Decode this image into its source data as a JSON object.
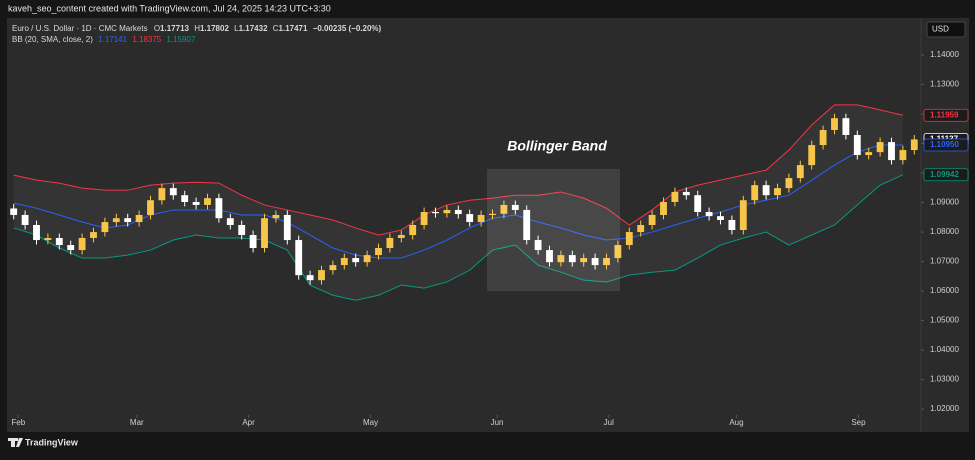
{
  "header": {
    "credit": "kaveh_seo_content created with TradingView.com, Jul 24, 2025 14:23 UTC+3:30",
    "currency": "USD",
    "footer": "TradingView"
  },
  "chart_data": {
    "type": "candlestick",
    "symbol": "Euro / U.S. Dollar · 1D · CMC Markets",
    "ohlc_legend": [
      {
        "key": "O",
        "value": 1.17713
      },
      {
        "key": "H",
        "value": 1.17802
      },
      {
        "key": "L",
        "value": 1.17432
      },
      {
        "key": "C",
        "value": 1.17471
      }
    ],
    "change": "−0.00235 (−0.20%)",
    "indicator": {
      "name": "BB (20, SMA, close, 2)",
      "values": [
        {
          "value": 1.17141,
          "color": "#2962ff"
        },
        {
          "value": 1.18375,
          "color": "#f23645"
        },
        {
          "value": 1.15907,
          "color": "#089981"
        }
      ]
    },
    "annotation": "Bollinger Band",
    "x": [
      0,
      1,
      2,
      3,
      4,
      5,
      6,
      7,
      8,
      9,
      10,
      11,
      12,
      13,
      14,
      15,
      16,
      17,
      18,
      19,
      20,
      21,
      22,
      23,
      24,
      25,
      26,
      27,
      28,
      29,
      30,
      31,
      32,
      33,
      34,
      35,
      36,
      37,
      38,
      39,
      40,
      41,
      42,
      43,
      44,
      45,
      46,
      47,
      48,
      49,
      50,
      51,
      52,
      53,
      54,
      55,
      56,
      57,
      58,
      59,
      60,
      61,
      62,
      63,
      64,
      65,
      66,
      67,
      68,
      69,
      70,
      71,
      72,
      73,
      74,
      75,
      76,
      77,
      78,
      79
    ],
    "open": [
      1.088,
      1.0858,
      1.0824,
      1.0773,
      1.078,
      1.0756,
      1.0739,
      1.078,
      1.08,
      1.0834,
      1.0847,
      1.0834,
      1.0858,
      1.0908,
      1.0949,
      1.0925,
      1.0902,
      1.0892,
      1.0915,
      1.0847,
      1.0824,
      1.079,
      1.0746,
      1.0847,
      1.0858,
      1.0773,
      1.0654,
      1.0637,
      1.0671,
      1.0688,
      1.0712,
      1.0698,
      1.0722,
      1.0746,
      1.078,
      1.079,
      1.0824,
      1.0868,
      1.0864,
      1.0875,
      1.0861,
      1.0834,
      1.0858,
      1.0862,
      1.0892,
      1.0875,
      1.0773,
      1.0739,
      1.0698,
      1.0722,
      1.0698,
      1.0712,
      1.0688,
      1.0712,
      1.0756,
      1.08,
      1.0824,
      1.0858,
      1.0902,
      1.0936,
      1.0925,
      1.0868,
      1.0854,
      1.0841,
      1.0807,
      1.0908,
      1.0959,
      1.0925,
      1.0949,
      1.0983,
      1.1027,
      1.1095,
      1.1146,
      1.1186,
      1.1129,
      1.1061,
      1.1071,
      1.1105,
      1.1044,
      1.1078
    ],
    "high": [
      1.0895,
      1.0873,
      1.0839,
      1.0795,
      1.0795,
      1.0771,
      1.0795,
      1.0815,
      1.0849,
      1.0862,
      1.0862,
      1.0873,
      1.0923,
      1.0964,
      1.0964,
      1.094,
      1.0917,
      1.093,
      1.093,
      1.0862,
      1.0839,
      1.0805,
      1.0862,
      1.0873,
      1.0873,
      1.0788,
      1.0669,
      1.0686,
      1.0703,
      1.0727,
      1.0727,
      1.0737,
      1.0761,
      1.0795,
      1.0805,
      1.0839,
      1.0883,
      1.0883,
      1.089,
      1.089,
      1.0876,
      1.0873,
      1.0877,
      1.0907,
      1.0907,
      1.089,
      1.0788,
      1.0754,
      1.0737,
      1.0737,
      1.0727,
      1.0727,
      1.0727,
      1.0771,
      1.0815,
      1.0839,
      1.0873,
      1.0917,
      1.0951,
      1.0951,
      1.094,
      1.0883,
      1.0869,
      1.0856,
      1.0923,
      1.0974,
      1.0974,
      1.0964,
      1.0998,
      1.1042,
      1.111,
      1.1161,
      1.1201,
      1.1201,
      1.1144,
      1.1086,
      1.112,
      1.112,
      1.1093,
      1.1129
    ],
    "low": [
      1.0843,
      1.0809,
      1.0758,
      1.0758,
      1.0741,
      1.0724,
      1.0724,
      1.0765,
      1.0785,
      1.0819,
      1.0819,
      1.0819,
      1.0843,
      1.0893,
      1.091,
      1.0887,
      1.0877,
      1.0877,
      1.0832,
      1.0809,
      1.0775,
      1.0731,
      1.0731,
      1.0832,
      1.0758,
      1.0639,
      1.0622,
      1.0622,
      1.0656,
      1.0673,
      1.0683,
      1.0683,
      1.0707,
      1.0731,
      1.0765,
      1.0775,
      1.0809,
      1.0849,
      1.0849,
      1.0846,
      1.0819,
      1.0819,
      1.0843,
      1.0847,
      1.086,
      1.0758,
      1.0724,
      1.0683,
      1.0683,
      1.0683,
      1.0683,
      1.0673,
      1.0673,
      1.0697,
      1.0741,
      1.0785,
      1.0809,
      1.0843,
      1.0887,
      1.091,
      1.0853,
      1.0839,
      1.0826,
      1.0792,
      1.0792,
      1.0893,
      1.091,
      1.091,
      1.0934,
      1.0968,
      1.1012,
      1.108,
      1.1131,
      1.1114,
      1.1046,
      1.1046,
      1.1056,
      1.1029,
      1.1029,
      1.1063
    ],
    "close": [
      1.0858,
      1.0824,
      1.0773,
      1.078,
      1.0756,
      1.0739,
      1.078,
      1.08,
      1.0834,
      1.0847,
      1.0834,
      1.0858,
      1.0908,
      1.0949,
      1.0925,
      1.0902,
      1.0892,
      1.0915,
      1.0847,
      1.0824,
      1.079,
      1.0746,
      1.0847,
      1.0858,
      1.0773,
      1.0654,
      1.0637,
      1.0671,
      1.0688,
      1.0712,
      1.0698,
      1.0722,
      1.0746,
      1.078,
      1.079,
      1.0824,
      1.0868,
      1.0864,
      1.0875,
      1.0861,
      1.0834,
      1.0858,
      1.0862,
      1.0892,
      1.0875,
      1.0773,
      1.0739,
      1.0698,
      1.0722,
      1.0698,
      1.0712,
      1.0688,
      1.0712,
      1.0756,
      1.08,
      1.0824,
      1.0858,
      1.0902,
      1.0936,
      1.0925,
      1.0868,
      1.0854,
      1.0841,
      1.0807,
      1.0908,
      1.0959,
      1.0925,
      1.0949,
      1.0983,
      1.1027,
      1.1095,
      1.1146,
      1.1186,
      1.1129,
      1.1061,
      1.1071,
      1.1105,
      1.1044,
      1.1078,
      1.1114
    ],
    "up_color": "#f7c548",
    "down_color": "#ffffff",
    "band_x": [
      0,
      2,
      4,
      6,
      8,
      10,
      12,
      14,
      16,
      18,
      20,
      22,
      24,
      26,
      28,
      30,
      32,
      34,
      36,
      38,
      40,
      42,
      44,
      46,
      48,
      50,
      52,
      54,
      56,
      58,
      60,
      62,
      64,
      66,
      68,
      70,
      72,
      74,
      76,
      78
    ],
    "band_fill": "rgba(255,255,255,0.045)",
    "bands": [
      {
        "color": "#f23645",
        "values": [
          1.0993,
          1.0976,
          1.0966,
          1.0949,
          1.0942,
          1.0942,
          1.0959,
          1.0966,
          1.0969,
          1.0966,
          1.0925,
          1.0892,
          1.0875,
          1.0858,
          1.0841,
          1.0814,
          1.079,
          1.0807,
          1.0858,
          1.0892,
          1.0908,
          1.0915,
          1.0925,
          1.0925,
          1.0936,
          1.0915,
          1.0881,
          1.0824,
          1.0875,
          1.0936,
          1.0959,
          1.0976,
          1.0993,
          1.101,
          1.1078,
          1.1163,
          1.1231,
          1.1231,
          1.1214,
          1.1196
        ]
      },
      {
        "color": "#2962ff",
        "values": [
          1.0898,
          1.0881,
          1.0858,
          1.0834,
          1.0814,
          1.0824,
          1.0858,
          1.0875,
          1.0875,
          1.0875,
          1.0858,
          1.0858,
          1.0834,
          1.079,
          1.0746,
          1.0722,
          1.0712,
          1.0712,
          1.0739,
          1.0773,
          1.0814,
          1.0847,
          1.0858,
          1.0834,
          1.0814,
          1.079,
          1.0773,
          1.078,
          1.08,
          1.0824,
          1.0847,
          1.0868,
          1.0892,
          1.0908,
          1.0925,
          1.0976,
          1.1027,
          1.1071,
          1.1095,
          1.1095
        ]
      },
      {
        "color": "#089981",
        "values": [
          1.0814,
          1.079,
          1.0746,
          1.0712,
          1.0712,
          1.0722,
          1.0739,
          1.0773,
          1.079,
          1.078,
          1.078,
          1.0773,
          1.0739,
          1.062,
          1.0586,
          1.0569,
          1.0586,
          1.062,
          1.061,
          1.0631,
          1.0671,
          1.0739,
          1.0756,
          1.0688,
          1.0664,
          1.0637,
          1.0631,
          1.0654,
          1.0664,
          1.0671,
          1.0712,
          1.0756,
          1.078,
          1.08,
          1.0756,
          1.079,
          1.0824,
          1.0892,
          1.0959,
          1.0994
        ]
      }
    ],
    "price_tags": [
      {
        "value": 1.11959,
        "color": "#f23645"
      },
      {
        "value": 1.11137,
        "color": "#ffffff"
      },
      {
        "value": 1.1095,
        "label": "1.10950",
        "color": "#2962ff"
      },
      {
        "value": 1.09942,
        "color": "#089981"
      }
    ],
    "xlim": [
      -0.5,
      79.5
    ],
    "xticks": [
      {
        "value": 0.4,
        "label": "Feb"
      },
      {
        "value": 10.8,
        "label": "Mar"
      },
      {
        "value": 20.6,
        "label": "Apr"
      },
      {
        "value": 31.3,
        "label": "May"
      },
      {
        "value": 42.4,
        "label": "Jun"
      },
      {
        "value": 52.2,
        "label": "Jul"
      },
      {
        "value": 63.4,
        "label": "Aug"
      },
      {
        "value": 74.1,
        "label": "Sep"
      }
    ],
    "ylim": [
      1.018,
      1.1451
    ],
    "yticks": [
      {
        "value": 1.14,
        "label": "1.14000"
      },
      {
        "value": 1.13,
        "label": "1.13000"
      },
      {
        "value": 1.12,
        "label": "1.12000"
      },
      {
        "value": 1.11,
        "label": "1.11000"
      },
      {
        "value": 1.1,
        "label": "1.10000"
      },
      {
        "value": 1.09,
        "label": "1.09000"
      },
      {
        "value": 1.08,
        "label": "1.08000"
      },
      {
        "value": 1.07,
        "label": "1.07000"
      },
      {
        "value": 1.06,
        "label": "1.06000"
      },
      {
        "value": 1.05,
        "label": "1.05000"
      },
      {
        "value": 1.04,
        "label": "1.04000"
      },
      {
        "value": 1.03,
        "label": "1.03000"
      },
      {
        "value": 1.02,
        "label": "1.02000"
      }
    ]
  }
}
